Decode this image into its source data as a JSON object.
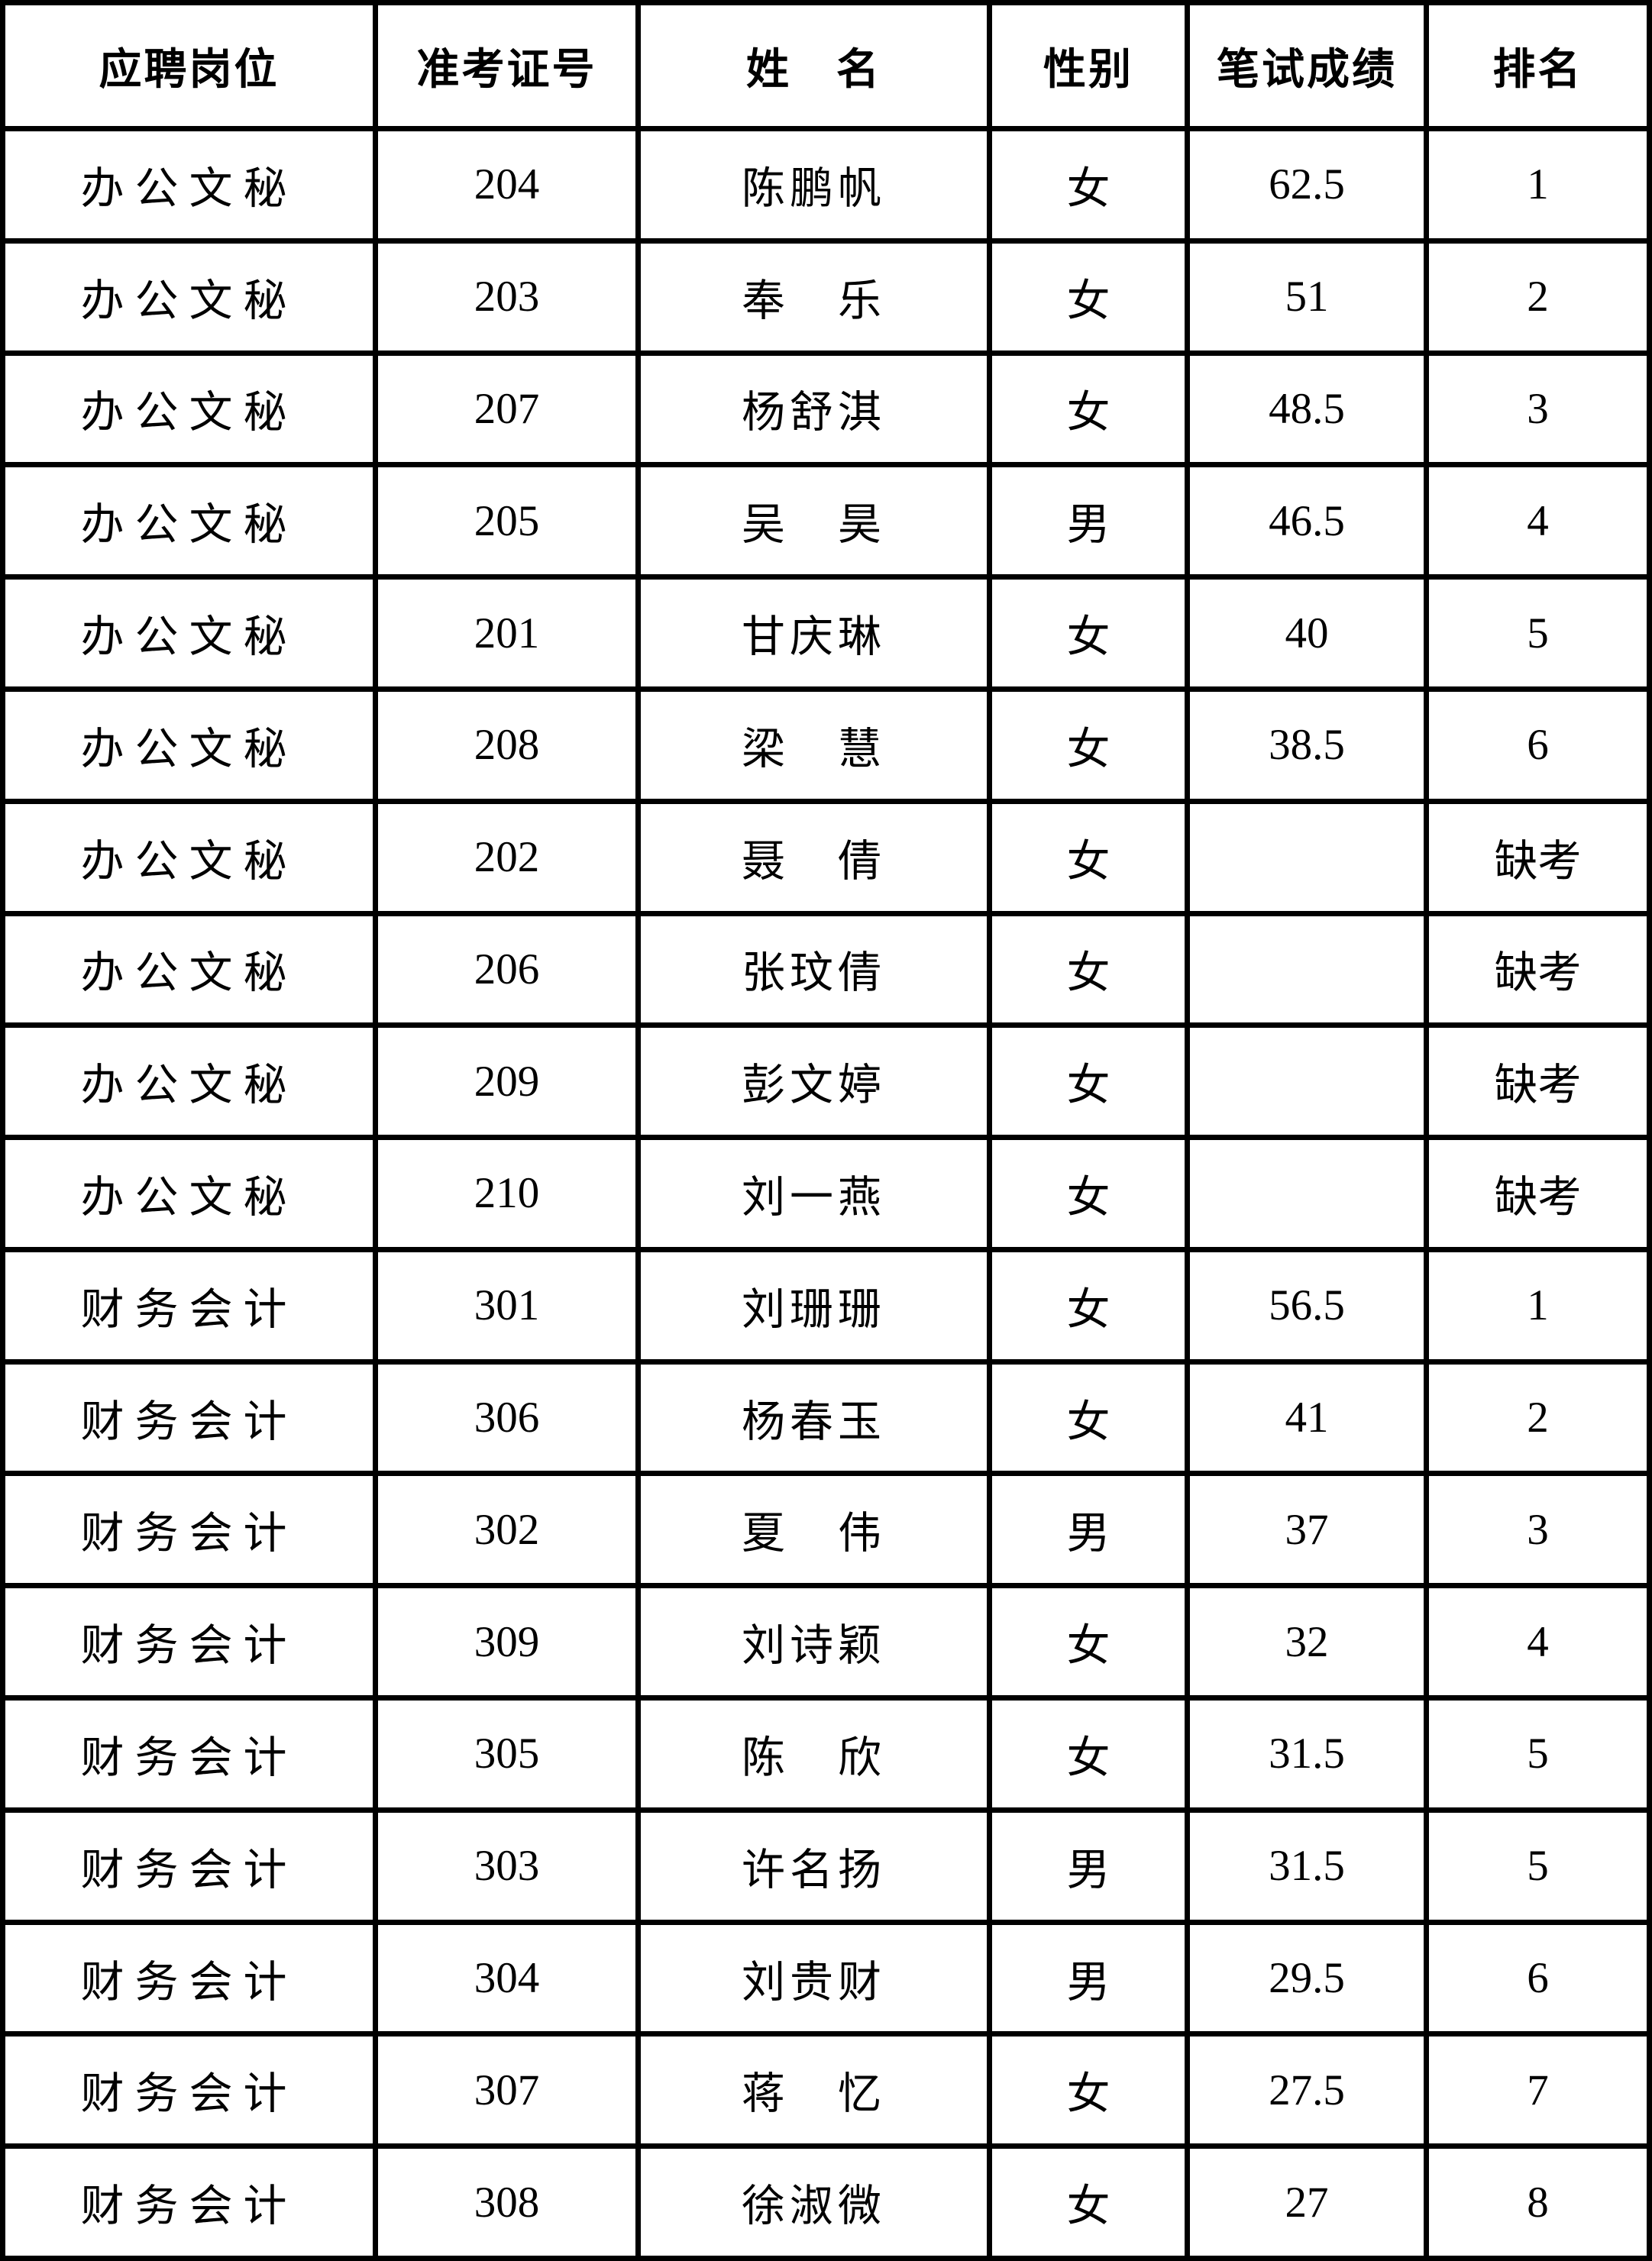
{
  "colors": {
    "border": "#000000",
    "cell_background": "#ffffff",
    "text": "#000000"
  },
  "table": {
    "headers": [
      "应聘岗位",
      "准考证号",
      "姓　名",
      "性别",
      "笔试成绩",
      "排名"
    ],
    "rows": [
      {
        "position": "办公文秘",
        "ticket": "204",
        "name": "陈鹏帆",
        "gender": "女",
        "score": "62.5",
        "rank": "1"
      },
      {
        "position": "办公文秘",
        "ticket": "203",
        "name": "奉　乐",
        "gender": "女",
        "score": "51",
        "rank": "2"
      },
      {
        "position": "办公文秘",
        "ticket": "207",
        "name": "杨舒淇",
        "gender": "女",
        "score": "48.5",
        "rank": "3"
      },
      {
        "position": "办公文秘",
        "ticket": "205",
        "name": "吴　昊",
        "gender": "男",
        "score": "46.5",
        "rank": "4"
      },
      {
        "position": "办公文秘",
        "ticket": "201",
        "name": "甘庆琳",
        "gender": "女",
        "score": "40",
        "rank": "5"
      },
      {
        "position": "办公文秘",
        "ticket": "208",
        "name": "梁　慧",
        "gender": "女",
        "score": "38.5",
        "rank": "6"
      },
      {
        "position": "办公文秘",
        "ticket": "202",
        "name": "聂　倩",
        "gender": "女",
        "score": "",
        "rank": "缺考"
      },
      {
        "position": "办公文秘",
        "ticket": "206",
        "name": "张玟倩",
        "gender": "女",
        "score": "",
        "rank": "缺考"
      },
      {
        "position": "办公文秘",
        "ticket": "209",
        "name": "彭文婷",
        "gender": "女",
        "score": "",
        "rank": "缺考"
      },
      {
        "position": "办公文秘",
        "ticket": "210",
        "name": "刘一燕",
        "gender": "女",
        "score": "",
        "rank": "缺考"
      },
      {
        "position": "财务会计",
        "ticket": "301",
        "name": "刘珊珊",
        "gender": "女",
        "score": "56.5",
        "rank": "1"
      },
      {
        "position": "财务会计",
        "ticket": "306",
        "name": "杨春玉",
        "gender": "女",
        "score": "41",
        "rank": "2"
      },
      {
        "position": "财务会计",
        "ticket": "302",
        "name": "夏　伟",
        "gender": "男",
        "score": "37",
        "rank": "3"
      },
      {
        "position": "财务会计",
        "ticket": "309",
        "name": "刘诗颖",
        "gender": "女",
        "score": "32",
        "rank": "4"
      },
      {
        "position": "财务会计",
        "ticket": "305",
        "name": "陈　欣",
        "gender": "女",
        "score": "31.5",
        "rank": "5"
      },
      {
        "position": "财务会计",
        "ticket": "303",
        "name": "许名扬",
        "gender": "男",
        "score": "31.5",
        "rank": "5"
      },
      {
        "position": "财务会计",
        "ticket": "304",
        "name": "刘贵财",
        "gender": "男",
        "score": "29.5",
        "rank": "6"
      },
      {
        "position": "财务会计",
        "ticket": "307",
        "name": "蒋　忆",
        "gender": "女",
        "score": "27.5",
        "rank": "7"
      },
      {
        "position": "财务会计",
        "ticket": "308",
        "name": "徐淑微",
        "gender": "女",
        "score": "27",
        "rank": "8"
      }
    ]
  }
}
